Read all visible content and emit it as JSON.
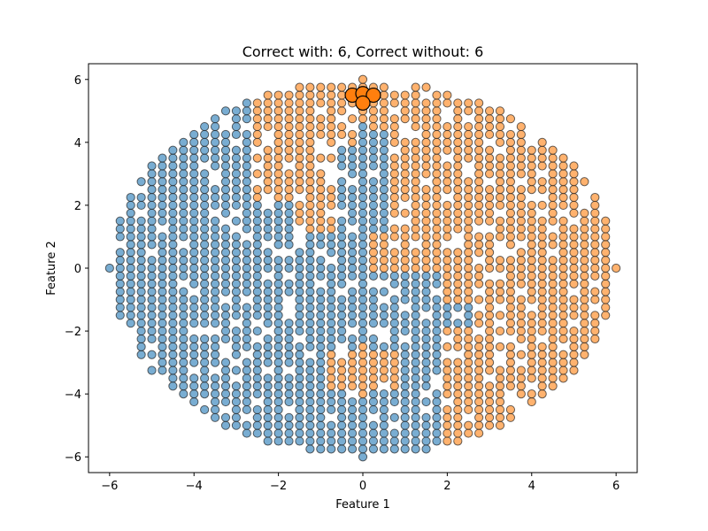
{
  "chart_data": {
    "type": "scatter",
    "title": "Correct with: 6, Correct without: 6",
    "xlabel": "Feature 1",
    "ylabel": "Feature 2",
    "xlim": [
      -6.5,
      6.5
    ],
    "ylim": [
      -6.5,
      6.5
    ],
    "xticks": [
      -6,
      -4,
      -2,
      0,
      2,
      4,
      6
    ],
    "yticks": [
      -6,
      -4,
      -2,
      0,
      2,
      4,
      6
    ],
    "grid": false,
    "point_region": {
      "shape": "ellipse",
      "x_range": [
        -6,
        6
      ],
      "y_range": [
        -6,
        6
      ],
      "x_step": 0.25,
      "y_step": 0.25
    },
    "series": [
      {
        "color": "#1f77b4",
        "regions": [
          "most of x<0",
          "most of y<0 x<2",
          "central column x=0 y in [-6,4.5]",
          "x axis y=0 x<0"
        ]
      },
      {
        "color": "#ff7f0e",
        "regions": [
          "most of x>0 y>0",
          "x>2 y<0 lower-right",
          "x axis y=0 x>0",
          "small cluster x in [-0.8,0.8] y in [-4,-2.5]"
        ]
      }
    ],
    "highlighted_points": {
      "color": "#ff7f0e",
      "points": [
        [
          -0.25,
          5.5
        ],
        [
          0.0,
          5.55
        ],
        [
          0.25,
          5.5
        ],
        [
          0.0,
          5.25
        ]
      ]
    }
  }
}
